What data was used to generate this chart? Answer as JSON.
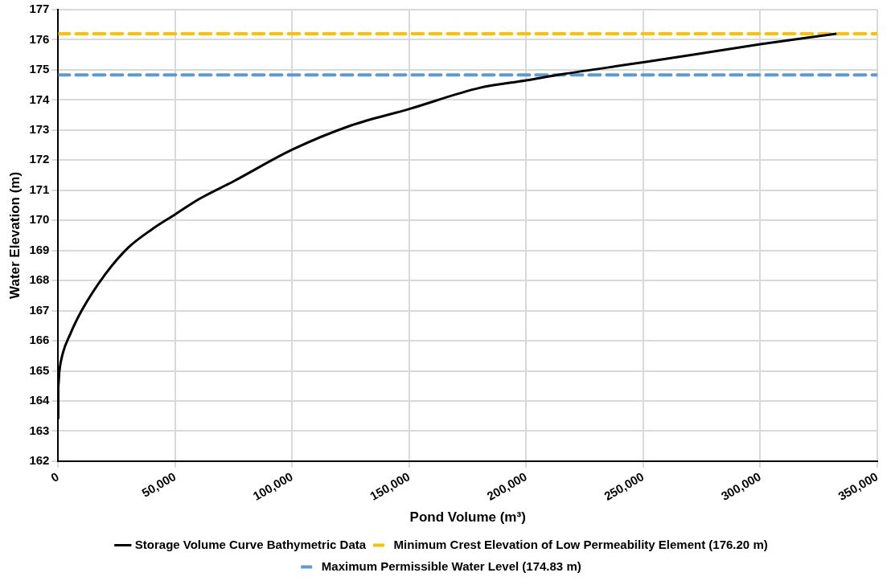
{
  "chart_data": {
    "type": "line",
    "xlabel": "Pond Volume (m³)",
    "ylabel": "Water Elevation (m)",
    "series": [
      {
        "name": "Storage Volume Curve Bathymetric Data",
        "color": "#000000",
        "x": [
          0,
          0,
          500,
          2000,
          5000,
          10000,
          20000,
          30000,
          40000,
          50000,
          60000,
          75000,
          100000,
          125000,
          150000,
          180000,
          200000,
          215000,
          250000,
          300000,
          332500
        ],
        "values": [
          163.4,
          164.5,
          165.0,
          165.6,
          166.2,
          167.0,
          168.2,
          169.1,
          169.7,
          170.2,
          170.7,
          171.3,
          172.35,
          173.15,
          173.7,
          174.4,
          174.65,
          174.85,
          175.25,
          175.85,
          176.2
        ]
      }
    ],
    "ref_lines": [
      {
        "axis": "y",
        "value": 176.2,
        "label": "Minimum Crest Elevation of Low Permeability Element (176.20 m)",
        "color": "#ffc000",
        "line_style": "dashed"
      },
      {
        "axis": "y",
        "value": 174.83,
        "label": "Maximum Permissible Water Level (174.83 m)",
        "color": "#5b9bd5",
        "line_style": "dashed"
      }
    ],
    "xlim": [
      0,
      350000
    ],
    "xticks": [
      {
        "value": 0,
        "label": "0"
      },
      {
        "value": 50000,
        "label": "50,000"
      },
      {
        "value": 100000,
        "label": "100,000"
      },
      {
        "value": 150000,
        "label": "150,000"
      },
      {
        "value": 200000,
        "label": "200,000"
      },
      {
        "value": 250000,
        "label": "250,000"
      },
      {
        "value": 300000,
        "label": "300,000"
      },
      {
        "value": 350000,
        "label": "350,000"
      }
    ],
    "ylim": [
      162,
      177
    ],
    "yticks": [
      162,
      163,
      164,
      165,
      166,
      167,
      168,
      169,
      170,
      171,
      172,
      173,
      174,
      175,
      176,
      177
    ],
    "grid": true,
    "legend": "bottom",
    "marker": "none",
    "line_style": "solid"
  }
}
